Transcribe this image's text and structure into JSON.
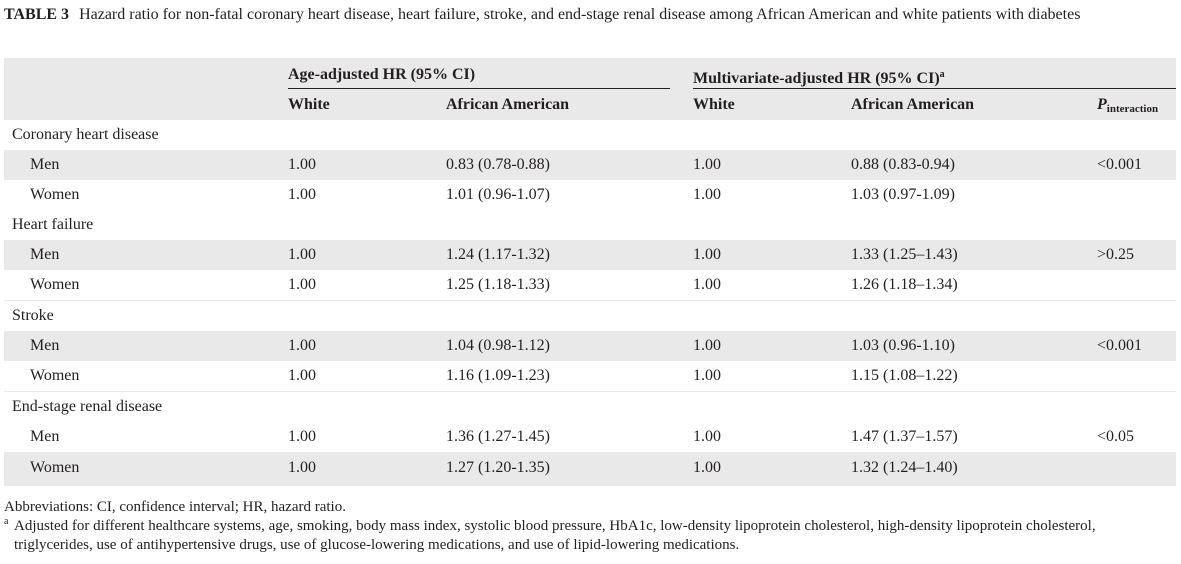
{
  "caption": {
    "label": "TABLE 3",
    "text": "Hazard ratio for non-fatal coronary heart disease, heart failure, stroke, and end-stage renal disease among African American and white patients with diabetes"
  },
  "header": {
    "group1": "Age-adjusted HR (95% CI)",
    "group2": "Multivariate-adjusted HR (95% CI)",
    "group2_sup": "a",
    "col_white": "White",
    "col_aa": "African American",
    "p_main": "P",
    "p_sub": "interaction"
  },
  "sections": [
    {
      "title": "Coronary heart disease",
      "rows": [
        {
          "label": "Men",
          "age_white": "1.00",
          "age_aa": "0.83 (0.78-0.88)",
          "mv_white": "1.00",
          "mv_aa": "0.88 (0.83-0.94)",
          "p": "<0.001"
        },
        {
          "label": "Women",
          "age_white": "1.00",
          "age_aa": "1.01 (0.96-1.07)",
          "mv_white": "1.00",
          "mv_aa": "1.03 (0.97-1.09)",
          "p": ""
        }
      ]
    },
    {
      "title": "Heart failure",
      "rows": [
        {
          "label": "Men",
          "age_white": "1.00",
          "age_aa": "1.24 (1.17-1.32)",
          "mv_white": "1.00",
          "mv_aa": "1.33 (1.25–1.43)",
          "p": ">0.25"
        },
        {
          "label": "Women",
          "age_white": "1.00",
          "age_aa": "1.25 (1.18-1.33)",
          "mv_white": "1.00",
          "mv_aa": "1.26 (1.18–1.34)",
          "p": ""
        }
      ]
    },
    {
      "title": "Stroke",
      "rows": [
        {
          "label": "Men",
          "age_white": "1.00",
          "age_aa": "1.04 (0.98-1.12)",
          "mv_white": "1.00",
          "mv_aa": "1.03 (0.96-1.10)",
          "p": "<0.001"
        },
        {
          "label": "Women",
          "age_white": "1.00",
          "age_aa": "1.16 (1.09-1.23)",
          "mv_white": "1.00",
          "mv_aa": "1.15 (1.08–1.22)",
          "p": ""
        }
      ]
    },
    {
      "title": "End-stage renal disease",
      "rows": [
        {
          "label": "Men",
          "age_white": "1.00",
          "age_aa": "1.36 (1.27-1.45)",
          "mv_white": "1.00",
          "mv_aa": "1.47 (1.37–1.57)",
          "p": "<0.05"
        },
        {
          "label": "Women",
          "age_white": "1.00",
          "age_aa": "1.27 (1.20-1.35)",
          "mv_white": "1.00",
          "mv_aa": "1.32 (1.24–1.40)",
          "p": ""
        }
      ]
    }
  ],
  "footnotes": {
    "abbreviations": "Abbreviations: CI, confidence interval; HR, hazard ratio.",
    "a_mark": "a",
    "a_text": "Adjusted for different healthcare systems, age, smoking, body mass index, systolic blood pressure, HbA1c, low-density lipoprotein cholesterol, high-density lipoprotein cholesterol, triglycerides, use of antihypertensive drugs, use of glucose-lowering medications, and use of lipid-lowering medications."
  }
}
